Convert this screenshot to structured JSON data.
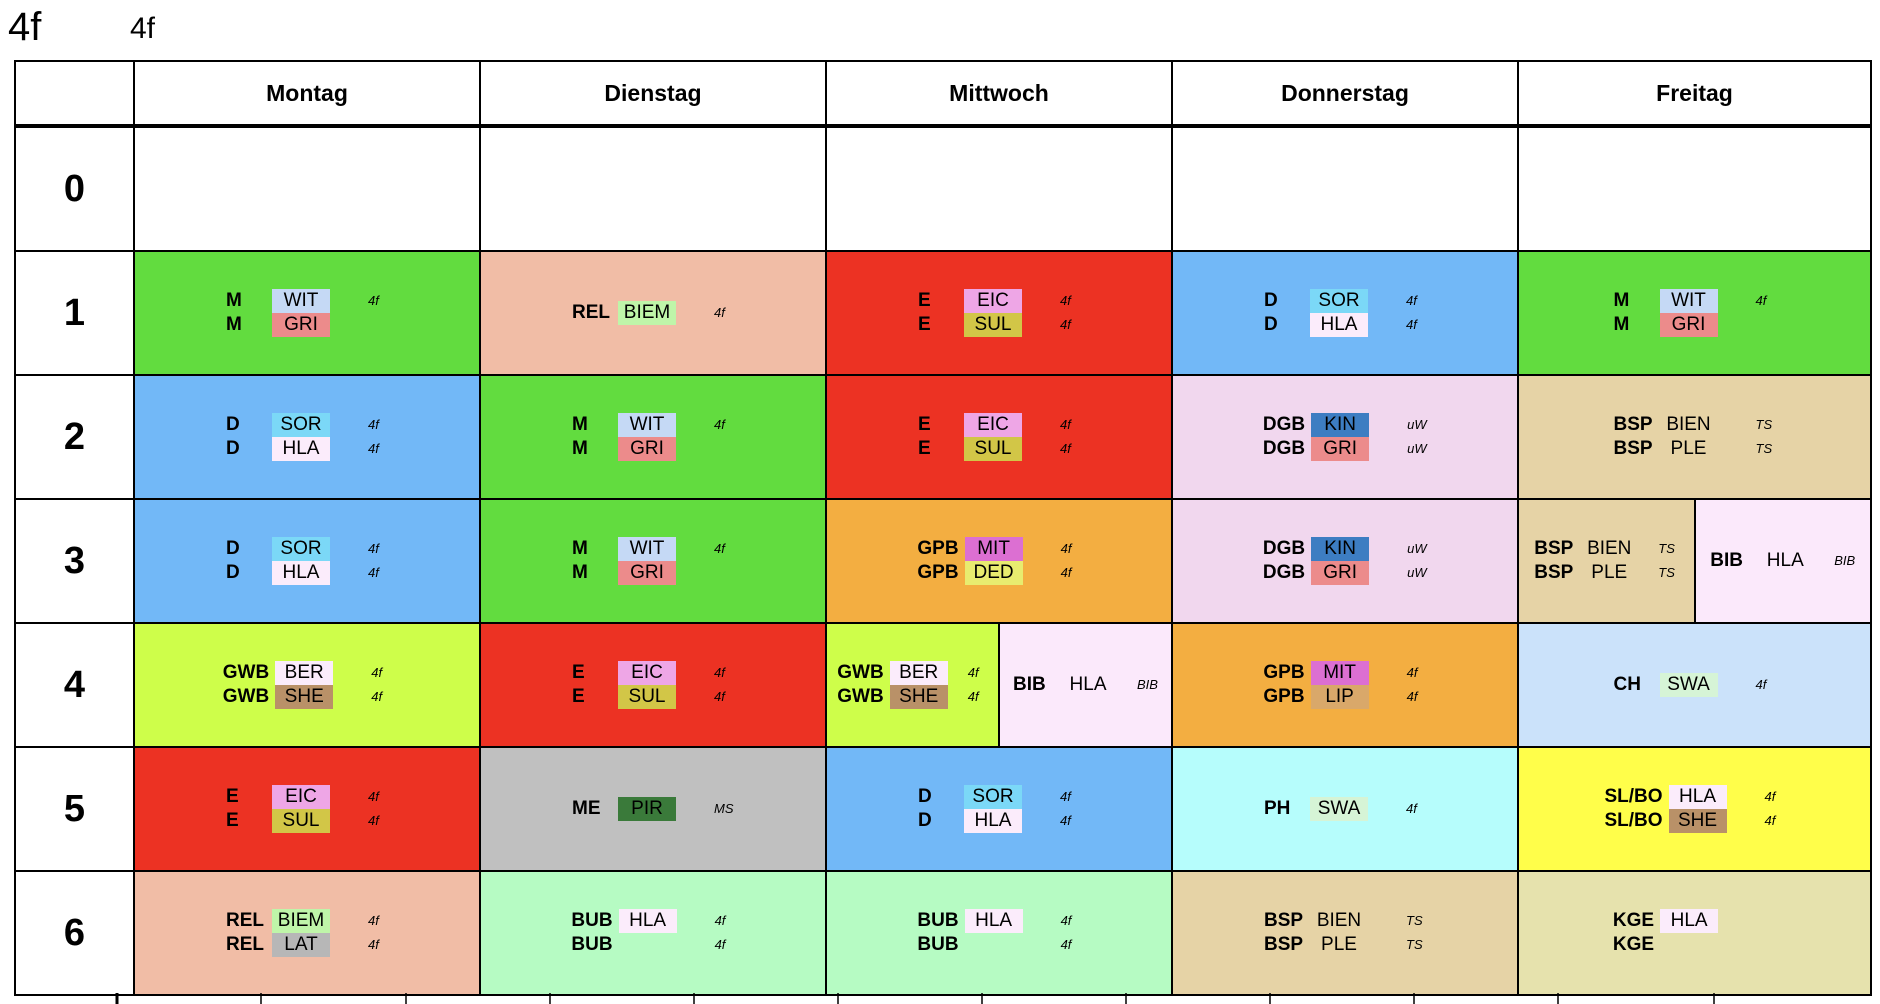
{
  "header": {
    "title": "4f",
    "class_label": "4f"
  },
  "days": [
    "Montag",
    "Dienstag",
    "Mittwoch",
    "Donnerstag",
    "Freitag"
  ],
  "colors": {
    "M": "#62dc3f",
    "D": "#72b8f7",
    "E": "#ec3223",
    "REL": "#f1bda6",
    "DGB": "#f1d7ee",
    "BSP": "#e6d3a6",
    "BIB": "#fbe9fb",
    "GPB": "#f3ae41",
    "GWB": "#cefe4a",
    "CH": "#cbe2fa",
    "ME": "#c0c0c0",
    "PH": "#b6fdfc",
    "SLBO": "#fffe4a",
    "BUB": "#b6fbc3",
    "KGE": "#e6e2ad"
  },
  "periods": [
    {
      "label": "0",
      "cells": [
        {
          "color": "#ffffff",
          "lines": []
        },
        {
          "color": "#ffffff",
          "lines": []
        },
        {
          "color": "#ffffff",
          "lines": []
        },
        {
          "color": "#ffffff",
          "lines": []
        },
        {
          "color": "#ffffff",
          "lines": []
        }
      ]
    },
    {
      "label": "1",
      "cells": [
        {
          "color": "#62dc3f",
          "lines": [
            {
              "subject": "M",
              "teacher": "WIT",
              "teacher_color": "#c5d9f5",
              "room": "4f"
            },
            {
              "subject": "M",
              "teacher": "GRI",
              "teacher_color": "#ec8b8b",
              "room": ""
            }
          ]
        },
        {
          "color": "#f1bda6",
          "lines": [
            {
              "subject": "REL",
              "teacher": "BIEM",
              "teacher_color": "#bff5a9",
              "room": "4f"
            }
          ]
        },
        {
          "color": "#ec3223",
          "lines": [
            {
              "subject": "E",
              "teacher": "EIC",
              "teacher_color": "#eea6e6",
              "room": "4f"
            },
            {
              "subject": "E",
              "teacher": "SUL",
              "teacher_color": "#d2c647",
              "room": "4f"
            }
          ]
        },
        {
          "color": "#72b8f7",
          "lines": [
            {
              "subject": "D",
              "teacher": "SOR",
              "teacher_color": "#7bd8f7",
              "room": "4f"
            },
            {
              "subject": "D",
              "teacher": "HLA",
              "teacher_color": "#fbecfb",
              "room": "4f"
            }
          ]
        },
        {
          "color": "#62dc3f",
          "lines": [
            {
              "subject": "M",
              "teacher": "WIT",
              "teacher_color": "#c5d9f5",
              "room": "4f"
            },
            {
              "subject": "M",
              "teacher": "GRI",
              "teacher_color": "#ec8b8b",
              "room": ""
            }
          ]
        }
      ]
    },
    {
      "label": "2",
      "cells": [
        {
          "color": "#72b8f7",
          "lines": [
            {
              "subject": "D",
              "teacher": "SOR",
              "teacher_color": "#7bd8f7",
              "room": "4f"
            },
            {
              "subject": "D",
              "teacher": "HLA",
              "teacher_color": "#fbecfb",
              "room": "4f"
            }
          ]
        },
        {
          "color": "#62dc3f",
          "lines": [
            {
              "subject": "M",
              "teacher": "WIT",
              "teacher_color": "#c5d9f5",
              "room": "4f"
            },
            {
              "subject": "M",
              "teacher": "GRI",
              "teacher_color": "#ec8b8b",
              "room": ""
            }
          ]
        },
        {
          "color": "#ec3223",
          "lines": [
            {
              "subject": "E",
              "teacher": "EIC",
              "teacher_color": "#eea6e6",
              "room": "4f"
            },
            {
              "subject": "E",
              "teacher": "SUL",
              "teacher_color": "#d2c647",
              "room": "4f"
            }
          ]
        },
        {
          "color": "#f1d7ee",
          "lines": [
            {
              "subject": "DGB",
              "teacher": "KIN",
              "teacher_color": "#3d7dc2",
              "room": "uW"
            },
            {
              "subject": "DGB",
              "teacher": "GRI",
              "teacher_color": "#ec8b8b",
              "room": "uW"
            }
          ]
        },
        {
          "color": "#e6d3a6",
          "lines": [
            {
              "subject": "BSP",
              "teacher": "BIEN",
              "teacher_color": "",
              "room": "TS"
            },
            {
              "subject": "BSP",
              "teacher": "PLE",
              "teacher_color": "",
              "room": "TS"
            }
          ]
        }
      ]
    },
    {
      "label": "3",
      "cells": [
        {
          "color": "#72b8f7",
          "lines": [
            {
              "subject": "D",
              "teacher": "SOR",
              "teacher_color": "#7bd8f7",
              "room": "4f"
            },
            {
              "subject": "D",
              "teacher": "HLA",
              "teacher_color": "#fbecfb",
              "room": "4f"
            }
          ]
        },
        {
          "color": "#62dc3f",
          "lines": [
            {
              "subject": "M",
              "teacher": "WIT",
              "teacher_color": "#c5d9f5",
              "room": "4f"
            },
            {
              "subject": "M",
              "teacher": "GRI",
              "teacher_color": "#ec8b8b",
              "room": ""
            }
          ]
        },
        {
          "color": "#f3ae41",
          "lines": [
            {
              "subject": "GPB",
              "teacher": "MIT",
              "teacher_color": "#dc6fd2",
              "room": "4f"
            },
            {
              "subject": "GPB",
              "teacher": "DED",
              "teacher_color": "#e8ec6f",
              "room": "4f"
            }
          ]
        },
        {
          "color": "#f1d7ee",
          "lines": [
            {
              "subject": "DGB",
              "teacher": "KIN",
              "teacher_color": "#3d7dc2",
              "room": "uW"
            },
            {
              "subject": "DGB",
              "teacher": "GRI",
              "teacher_color": "#ec8b8b",
              "room": "uW"
            }
          ]
        },
        {
          "split": [
            {
              "color": "#e6d3a6",
              "lines": [
                {
                  "subject": "BSP",
                  "teacher": "BIEN",
                  "teacher_color": "",
                  "room": "TS"
                },
                {
                  "subject": "BSP",
                  "teacher": "PLE",
                  "teacher_color": "",
                  "room": "TS"
                }
              ]
            },
            {
              "color": "#fbe9fb",
              "lines": [
                {
                  "subject": "BIB",
                  "teacher": "HLA",
                  "teacher_color": "",
                  "room": "BIB"
                }
              ]
            }
          ]
        }
      ]
    },
    {
      "label": "4",
      "cells": [
        {
          "color": "#cefe4a",
          "lines": [
            {
              "subject": "GWB",
              "teacher": "BER",
              "teacher_color": "#fbecfb",
              "room": "4f"
            },
            {
              "subject": "GWB",
              "teacher": "SHE",
              "teacher_color": "#b99168",
              "room": "4f"
            }
          ]
        },
        {
          "color": "#ec3223",
          "lines": [
            {
              "subject": "E",
              "teacher": "EIC",
              "teacher_color": "#eea6e6",
              "room": "4f"
            },
            {
              "subject": "E",
              "teacher": "SUL",
              "teacher_color": "#d2c647",
              "room": "4f"
            }
          ]
        },
        {
          "split": [
            {
              "color": "#cefe4a",
              "lines": [
                {
                  "subject": "GWB",
                  "teacher": "BER",
                  "teacher_color": "#fbecfb",
                  "room": "4f"
                },
                {
                  "subject": "GWB",
                  "teacher": "SHE",
                  "teacher_color": "#b99168",
                  "room": "4f"
                }
              ]
            },
            {
              "color": "#fbe9fb",
              "lines": [
                {
                  "subject": "BIB",
                  "teacher": "HLA",
                  "teacher_color": "",
                  "room": "BIB"
                }
              ]
            }
          ]
        },
        {
          "color": "#f3ae41",
          "lines": [
            {
              "subject": "GPB",
              "teacher": "MIT",
              "teacher_color": "#dc6fd2",
              "room": "4f"
            },
            {
              "subject": "GPB",
              "teacher": "LIP",
              "teacher_color": "#d9a86a",
              "room": "4f"
            }
          ]
        },
        {
          "color": "#cbe2fa",
          "lines": [
            {
              "subject": "CH",
              "teacher": "SWA",
              "teacher_color": "#d6f4d6",
              "room": "4f"
            }
          ]
        }
      ]
    },
    {
      "label": "5",
      "cells": [
        {
          "color": "#ec3223",
          "lines": [
            {
              "subject": "E",
              "teacher": "EIC",
              "teacher_color": "#eea6e6",
              "room": "4f"
            },
            {
              "subject": "E",
              "teacher": "SUL",
              "teacher_color": "#d2c647",
              "room": "4f"
            }
          ]
        },
        {
          "color": "#c0c0c0",
          "lines": [
            {
              "subject": "ME",
              "teacher": "PIR",
              "teacher_color": "#3a7a3a",
              "room": "MS"
            }
          ]
        },
        {
          "color": "#72b8f7",
          "lines": [
            {
              "subject": "D",
              "teacher": "SOR",
              "teacher_color": "#7bd8f7",
              "room": "4f"
            },
            {
              "subject": "D",
              "teacher": "HLA",
              "teacher_color": "#fbecfb",
              "room": "4f"
            }
          ]
        },
        {
          "color": "#b6fdfc",
          "lines": [
            {
              "subject": "PH",
              "teacher": "SWA",
              "teacher_color": "#d6f4d6",
              "room": "4f"
            }
          ]
        },
        {
          "color": "#fffe4a",
          "lines": [
            {
              "subject": "SL/BO",
              "teacher": "HLA",
              "teacher_color": "#fbecfb",
              "room": "4f"
            },
            {
              "subject": "SL/BO",
              "teacher": "SHE",
              "teacher_color": "#b99168",
              "room": "4f"
            }
          ]
        }
      ]
    },
    {
      "label": "6",
      "cells": [
        {
          "color": "#f1bda6",
          "lines": [
            {
              "subject": "REL",
              "teacher": "BIEM",
              "teacher_color": "#bff5a9",
              "room": "4f"
            },
            {
              "subject": "REL",
              "teacher": "LAT",
              "teacher_color": "#b7b7b7",
              "room": "4f"
            }
          ]
        },
        {
          "color": "#b6fbc3",
          "lines": [
            {
              "subject": "BUB",
              "teacher": "HLA",
              "teacher_color": "#fbecfb",
              "room": "4f"
            },
            {
              "subject": "BUB",
              "teacher": "",
              "teacher_color": "",
              "room": "4f"
            }
          ]
        },
        {
          "color": "#b6fbc3",
          "lines": [
            {
              "subject": "BUB",
              "teacher": "HLA",
              "teacher_color": "#fbecfb",
              "room": "4f"
            },
            {
              "subject": "BUB",
              "teacher": "",
              "teacher_color": "",
              "room": "4f"
            }
          ]
        },
        {
          "color": "#e6d3a6",
          "lines": [
            {
              "subject": "BSP",
              "teacher": "BIEN",
              "teacher_color": "",
              "room": "TS"
            },
            {
              "subject": "BSP",
              "teacher": "PLE",
              "teacher_color": "",
              "room": "TS"
            }
          ]
        },
        {
          "color": "#e6e2ad",
          "lines": [
            {
              "subject": "KGE",
              "teacher": "HLA",
              "teacher_color": "#fbecfb",
              "room": ""
            },
            {
              "subject": "KGE",
              "teacher": "",
              "teacher_color": "",
              "room": ""
            }
          ]
        }
      ]
    }
  ]
}
